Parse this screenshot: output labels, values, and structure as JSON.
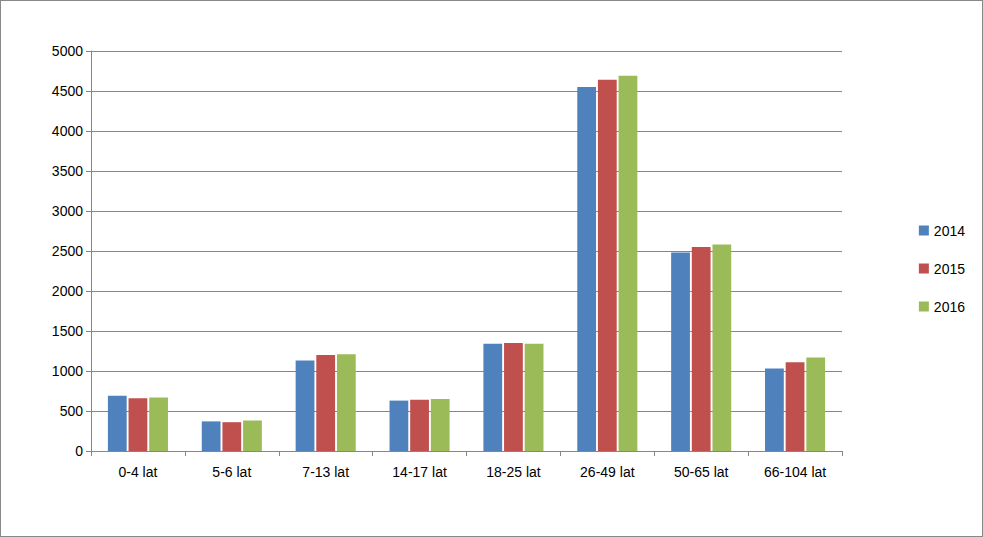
{
  "chart_data": {
    "type": "bar",
    "categories": [
      "0-4 lat",
      "5-6 lat",
      "7-13 lat",
      "14-17 lat",
      "18-25 lat",
      "26-49 lat",
      "50-65 lat",
      "66-104 lat"
    ],
    "series": [
      {
        "name": "2014",
        "color": "#4f81bd",
        "values": [
          690,
          370,
          1130,
          630,
          1340,
          4550,
          2480,
          1030
        ]
      },
      {
        "name": "2015",
        "color": "#c0504d",
        "values": [
          660,
          360,
          1200,
          640,
          1350,
          4640,
          2550,
          1110
        ]
      },
      {
        "name": "2016",
        "color": "#9bbb59",
        "values": [
          670,
          380,
          1210,
          650,
          1340,
          4690,
          2580,
          1170
        ]
      }
    ],
    "ylim": [
      0,
      5000
    ],
    "yticks": [
      0,
      500,
      1000,
      1500,
      2000,
      2500,
      3000,
      3500,
      4000,
      4500,
      5000
    ],
    "grid": true,
    "legend": "right"
  }
}
